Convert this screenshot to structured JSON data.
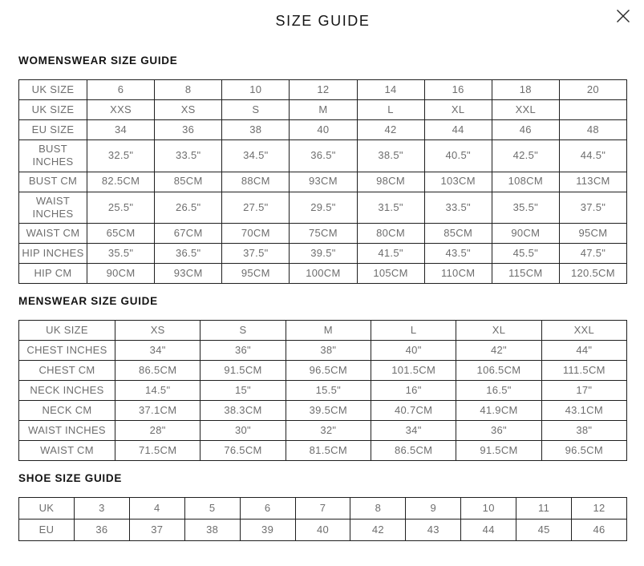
{
  "page": {
    "title": "SIZE GUIDE"
  },
  "close": {
    "icon": "close-x"
  },
  "colors": {
    "background": "#ffffff",
    "heading_text": "#141414",
    "cell_text": "#6e6e6e",
    "table_border": "#1f1f1f"
  },
  "sections": [
    {
      "heading": "WOMENSWEAR SIZE GUIDE",
      "table": {
        "rows": [
          {
            "label": "UK SIZE",
            "values": [
              "6",
              "8",
              "10",
              "12",
              "14",
              "16",
              "18",
              "20"
            ]
          },
          {
            "label": "UK SIZE",
            "values": [
              "XXS",
              "XS",
              "S",
              "M",
              "L",
              "XL",
              "XXL",
              ""
            ]
          },
          {
            "label": "EU SIZE",
            "values": [
              "34",
              "36",
              "38",
              "40",
              "42",
              "44",
              "46",
              "48"
            ]
          },
          {
            "label": "BUST INCHES",
            "values": [
              "32.5\"",
              "33.5\"",
              "34.5\"",
              "36.5\"",
              "38.5\"",
              "40.5\"",
              "42.5\"",
              "44.5\""
            ]
          },
          {
            "label": "BUST CM",
            "values": [
              "82.5CM",
              "85CM",
              "88CM",
              "93CM",
              "98CM",
              "103CM",
              "108CM",
              "113CM"
            ]
          },
          {
            "label": "WAIST INCHES",
            "values": [
              "25.5\"",
              "26.5\"",
              "27.5\"",
              "29.5\"",
              "31.5\"",
              "33.5\"",
              "35.5\"",
              "37.5\""
            ]
          },
          {
            "label": "WAIST CM",
            "values": [
              "65CM",
              "67CM",
              "70CM",
              "75CM",
              "80CM",
              "85CM",
              "90CM",
              "95CM"
            ]
          },
          {
            "label": "HIP INCHES",
            "values": [
              "35.5\"",
              "36.5\"",
              "37.5\"",
              "39.5\"",
              "41.5\"",
              "43.5\"",
              "45.5\"",
              "47.5\""
            ]
          },
          {
            "label": "HIP CM",
            "values": [
              "90CM",
              "93CM",
              "95CM",
              "100CM",
              "105CM",
              "110CM",
              "115CM",
              "120.5CM"
            ]
          }
        ]
      }
    },
    {
      "heading": "MENSWEAR SIZE GUIDE",
      "table": {
        "rows": [
          {
            "label": "UK SIZE",
            "values": [
              "XS",
              "S",
              "M",
              "L",
              "XL",
              "XXL"
            ]
          },
          {
            "label": "CHEST INCHES",
            "values": [
              "34\"",
              "36\"",
              "38\"",
              "40\"",
              "42\"",
              "44\""
            ]
          },
          {
            "label": "CHEST CM",
            "values": [
              "86.5CM",
              "91.5CM",
              "96.5CM",
              "101.5CM",
              "106.5CM",
              "111.5CM"
            ]
          },
          {
            "label": "NECK INCHES",
            "values": [
              "14.5\"",
              "15\"",
              "15.5\"",
              "16\"",
              "16.5\"",
              "17\""
            ]
          },
          {
            "label": "NECK CM",
            "values": [
              "37.1CM",
              "38.3CM",
              "39.5CM",
              "40.7CM",
              "41.9CM",
              "43.1CM"
            ]
          },
          {
            "label": "WAIST INCHES",
            "values": [
              "28\"",
              "30\"",
              "32\"",
              "34\"",
              "36\"",
              "38\""
            ]
          },
          {
            "label": "WAIST CM",
            "values": [
              "71.5CM",
              "76.5CM",
              "81.5CM",
              "86.5CM",
              "91.5CM",
              "96.5CM"
            ]
          }
        ]
      }
    },
    {
      "heading": "SHOE SIZE GUIDE",
      "table": {
        "rows": [
          {
            "label": "UK",
            "values": [
              "3",
              "4",
              "5",
              "6",
              "7",
              "8",
              "9",
              "10",
              "11",
              "12"
            ]
          },
          {
            "label": "EU",
            "values": [
              "36",
              "37",
              "38",
              "39",
              "40",
              "42",
              "43",
              "44",
              "45",
              "46"
            ]
          }
        ]
      }
    }
  ]
}
